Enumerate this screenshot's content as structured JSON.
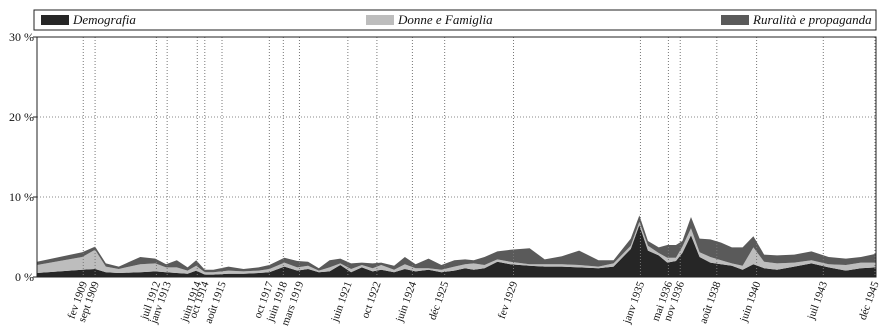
{
  "chart_data": {
    "type": "area",
    "stacked": true,
    "legend": {
      "placement": "top",
      "entries": [
        {
          "name": "Demografia",
          "color": "#262626"
        },
        {
          "name": "Donne e Famiglia",
          "color": "#bdbdbd"
        },
        {
          "name": "Ruralità e propaganda",
          "color": "#5a5a5a"
        }
      ]
    },
    "ylim": [
      0,
      30
    ],
    "yticks": [
      0,
      10,
      20,
      30
    ],
    "ytick_labels": [
      "0 %",
      "10 %",
      "20 %",
      "30 %"
    ],
    "grid": "dotted",
    "x_range": [
      1907.0,
      1946.0
    ],
    "x": [
      1907.0,
      1909.1,
      1909.7,
      1910.2,
      1910.8,
      1911.8,
      1912.5,
      1913.0,
      1913.5,
      1914.0,
      1914.4,
      1914.8,
      1915.2,
      1915.9,
      1916.6,
      1917.3,
      1917.8,
      1918.5,
      1919.1,
      1919.6,
      1920.1,
      1920.6,
      1921.1,
      1921.6,
      1922.1,
      1922.6,
      1923.0,
      1923.6,
      1924.1,
      1924.6,
      1925.2,
      1925.8,
      1926.4,
      1926.9,
      1927.3,
      1927.8,
      1928.4,
      1929.0,
      1929.9,
      1930.6,
      1931.4,
      1932.2,
      1933.1,
      1933.8,
      1934.6,
      1935.0,
      1935.4,
      1935.9,
      1936.3,
      1936.7,
      1937.0,
      1937.4,
      1937.8,
      1938.3,
      1938.8,
      1939.3,
      1939.8,
      1940.3,
      1940.8,
      1941.4,
      1942.2,
      1943.0,
      1943.8,
      1944.6,
      1945.3,
      1946.0
    ],
    "series": [
      {
        "name": "Demografia",
        "values": [
          0.5,
          0.9,
          1.0,
          0.6,
          0.5,
          0.6,
          0.7,
          0.6,
          0.5,
          0.4,
          0.8,
          0.3,
          0.3,
          0.4,
          0.4,
          0.5,
          0.6,
          1.3,
          0.8,
          1.0,
          0.6,
          0.7,
          1.5,
          0.6,
          1.2,
          0.7,
          0.9,
          0.6,
          1.0,
          0.7,
          0.9,
          0.6,
          0.8,
          1.1,
          0.9,
          1.1,
          1.9,
          1.6,
          1.4,
          1.3,
          1.3,
          1.2,
          1.1,
          1.3,
          3.5,
          6.5,
          3.3,
          2.7,
          1.8,
          2.0,
          3.0,
          5.2,
          2.5,
          1.8,
          1.6,
          1.4,
          0.9,
          1.6,
          1.1,
          0.9,
          1.3,
          1.7,
          1.2,
          0.8,
          1.1,
          1.2
        ]
      },
      {
        "name": "Donne e Famiglia",
        "values": [
          1.0,
          1.6,
          2.4,
          0.7,
          0.5,
          1.0,
          1.0,
          0.6,
          0.7,
          0.4,
          0.6,
          0.3,
          0.3,
          0.4,
          0.3,
          0.3,
          0.4,
          0.5,
          0.4,
          0.4,
          0.2,
          0.5,
          0.2,
          0.4,
          0.3,
          0.4,
          0.6,
          0.3,
          0.6,
          0.4,
          0.2,
          0.3,
          0.5,
          0.5,
          0.8,
          0.4,
          0.3,
          0.3,
          0.2,
          0.3,
          0.3,
          0.3,
          0.2,
          0.4,
          0.4,
          0.4,
          0.6,
          0.3,
          0.6,
          0.4,
          0.8,
          0.9,
          0.6,
          0.7,
          0.5,
          0.3,
          0.5,
          2.1,
          0.8,
          0.8,
          0.5,
          0.4,
          0.4,
          0.7,
          0.7,
          0.6
        ]
      },
      {
        "name": "Ruralità e propaganda",
        "values": [
          0.4,
          0.6,
          0.4,
          0.4,
          0.3,
          0.9,
          0.6,
          0.4,
          0.9,
          0.4,
          0.7,
          0.3,
          0.3,
          0.5,
          0.3,
          0.4,
          0.5,
          0.6,
          0.8,
          0.5,
          0.3,
          0.9,
          0.6,
          0.7,
          0.3,
          0.6,
          0.3,
          0.5,
          0.9,
          0.5,
          1.2,
          0.6,
          0.8,
          0.6,
          0.4,
          1.0,
          1.0,
          1.5,
          2.0,
          0.6,
          1.0,
          1.8,
          0.8,
          0.4,
          0.9,
          0.8,
          0.6,
          0.7,
          1.6,
          1.6,
          0.7,
          1.4,
          1.7,
          2.2,
          2.2,
          2.0,
          2.3,
          1.4,
          0.9,
          1.0,
          1.0,
          1.1,
          0.9,
          0.8,
          0.7,
          1.1
        ]
      }
    ],
    "events": [
      {
        "label": "fev 1909",
        "x": 1909.15
      },
      {
        "label": "sept 1909",
        "x": 1909.7
      },
      {
        "label": "juil 1912",
        "x": 1912.55
      },
      {
        "label": "janv 1913",
        "x": 1913.05
      },
      {
        "label": "juin 1914",
        "x": 1914.45
      },
      {
        "label": "oct 1914",
        "x": 1914.8
      },
      {
        "label": "août 1915",
        "x": 1915.6
      },
      {
        "label": "oct 1917",
        "x": 1917.8
      },
      {
        "label": "juin 1918",
        "x": 1918.45
      },
      {
        "label": "mars 1919",
        "x": 1919.2
      },
      {
        "label": "juin 1921",
        "x": 1921.45
      },
      {
        "label": "oct 1922",
        "x": 1922.8
      },
      {
        "label": "juin 1924",
        "x": 1924.45
      },
      {
        "label": "déc 1925",
        "x": 1925.95
      },
      {
        "label": "fev 1929",
        "x": 1929.15
      },
      {
        "label": "janv 1935",
        "x": 1935.05
      },
      {
        "label": "mai 1936",
        "x": 1936.35
      },
      {
        "label": "nov 1936",
        "x": 1936.9
      },
      {
        "label": "août 1938",
        "x": 1938.6
      },
      {
        "label": "juin 1940",
        "x": 1940.45
      },
      {
        "label": "juil 1943",
        "x": 1943.55
      },
      {
        "label": "déc 1945",
        "x": 1945.95
      }
    ]
  }
}
